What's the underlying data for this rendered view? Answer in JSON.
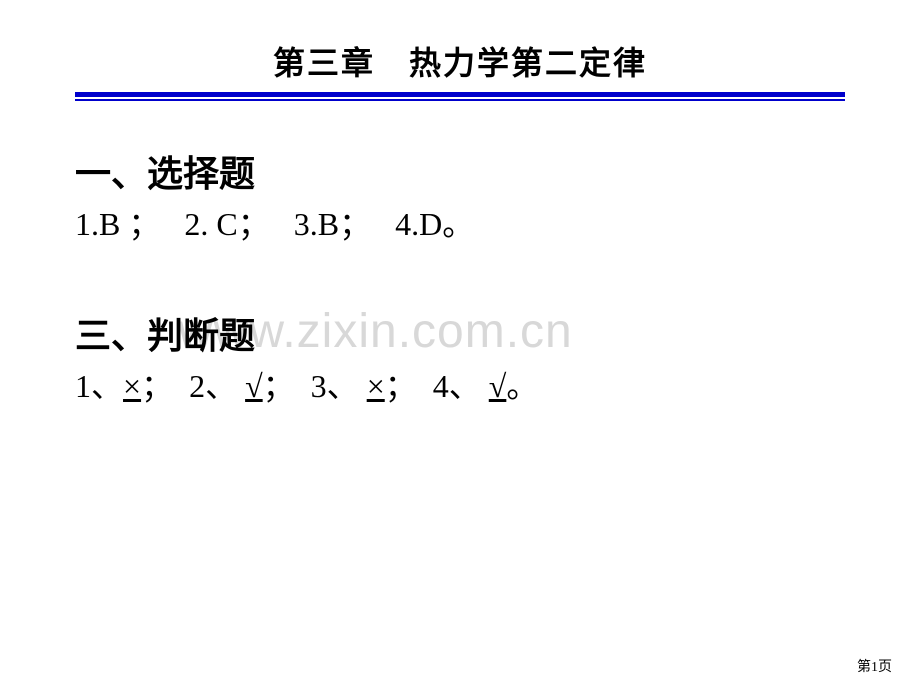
{
  "chapter": {
    "title": "第三章　热力学第二定律"
  },
  "section1": {
    "heading": "一、选择题",
    "q1_num": "1.",
    "q1_ans": "B",
    "sep1": " ；",
    "q2_num": "2. ",
    "q2_ans": "C",
    "sep2": "；",
    "q3_num": "3.",
    "q3_ans": "B",
    "sep3": "；",
    "q4_num": "4.",
    "q4_ans": "D",
    "sep4": "。"
  },
  "section2": {
    "heading": "三、判断题",
    "q1_num": "1、",
    "q1_ans": "×",
    "sep1": "；",
    "q2_num": "2、 ",
    "q2_ans": "√ ",
    "sep2": "；",
    "q3_num": "3、 ",
    "q3_ans": "× ",
    "sep3": "；",
    "q4_num": "4、 ",
    "q4_ans": "√ ",
    "sep4": "。"
  },
  "watermark": {
    "text": "www.zixin.com.cn"
  },
  "page": {
    "number": "第1页"
  },
  "colors": {
    "divider": "#0000cc",
    "text": "#000000",
    "watermark": "#d8d8d8",
    "background": "#ffffff"
  }
}
